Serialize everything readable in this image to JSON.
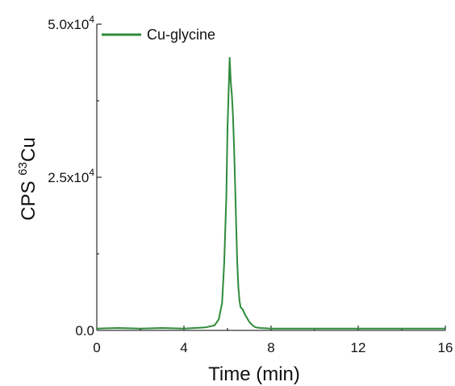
{
  "chart_data": {
    "type": "line",
    "xlabel": "Time (min)",
    "ylabel_main": "CPS ",
    "ylabel_sup": "63",
    "ylabel_tail": "Cu",
    "xlim": [
      0,
      16
    ],
    "ylim": [
      0,
      50000
    ],
    "x_ticks": [
      {
        "value": 0,
        "label": "0"
      },
      {
        "value": 4,
        "label": "4"
      },
      {
        "value": 8,
        "label": "8"
      },
      {
        "value": 12,
        "label": "12"
      },
      {
        "value": 16,
        "label": "16"
      }
    ],
    "y_ticks": [
      {
        "value": 0,
        "mantissa": "0.0",
        "exp": ""
      },
      {
        "value": 25000,
        "mantissa": "2.5x10",
        "exp": "4"
      },
      {
        "value": 50000,
        "mantissa": "5.0x10",
        "exp": "4"
      }
    ],
    "grid": false,
    "legend_position": "top-left",
    "series": [
      {
        "name": "Cu-glycine",
        "color": "#2e8b3a",
        "x": [
          0,
          1,
          2,
          3,
          4,
          5,
          5.4,
          5.6,
          5.75,
          5.85,
          5.95,
          6.0,
          6.05,
          6.1,
          6.15,
          6.2,
          6.25,
          6.3,
          6.35,
          6.4,
          6.45,
          6.5,
          6.55,
          6.6,
          6.7,
          6.8,
          6.9,
          7.0,
          7.1,
          7.2,
          7.3,
          7.5,
          8,
          10,
          12,
          14,
          16
        ],
        "y": [
          300,
          400,
          300,
          400,
          300,
          500,
          800,
          1800,
          4500,
          11000,
          22000,
          33000,
          39000,
          44500,
          40500,
          38500,
          35000,
          30000,
          24000,
          17000,
          11000,
          7000,
          4800,
          3800,
          3400,
          2600,
          2000,
          1400,
          1000,
          700,
          500,
          400,
          300,
          300,
          300,
          300,
          300
        ]
      }
    ]
  }
}
